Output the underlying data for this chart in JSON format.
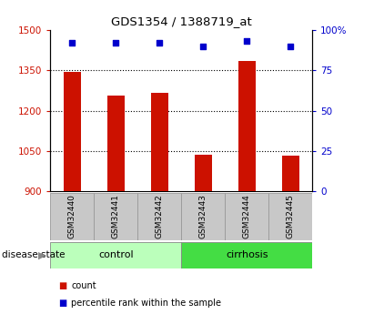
{
  "title": "GDS1354 / 1388719_at",
  "samples": [
    "GSM32440",
    "GSM32441",
    "GSM32442",
    "GSM32443",
    "GSM32444",
    "GSM32445"
  ],
  "counts": [
    1345,
    1255,
    1265,
    1038,
    1385,
    1032
  ],
  "percentile_ranks": [
    92,
    92,
    92,
    90,
    93,
    90
  ],
  "ylim_left": [
    900,
    1500
  ],
  "ylim_right": [
    0,
    100
  ],
  "yticks_left": [
    900,
    1050,
    1200,
    1350,
    1500
  ],
  "yticks_right": [
    0,
    25,
    50,
    75,
    100
  ],
  "ytick_labels_left": [
    "900",
    "1050",
    "1200",
    "1350",
    "1500"
  ],
  "ytick_labels_right": [
    "0",
    "25",
    "50",
    "75",
    "100%"
  ],
  "bar_color": "#cc1100",
  "scatter_color": "#0000cc",
  "bar_width": 0.4,
  "groups": [
    {
      "label": "control",
      "indices": [
        0,
        1,
        2
      ],
      "color": "#bbffbb"
    },
    {
      "label": "cirrhosis",
      "indices": [
        3,
        4,
        5
      ],
      "color": "#44dd44"
    }
  ],
  "disease_state_label": "disease state",
  "legend_count_label": "count",
  "legend_percentile_label": "percentile rank within the sample",
  "left_tick_color": "#cc1100",
  "right_tick_color": "#0000cc",
  "grid_color": "#000000",
  "background_color": "#ffffff",
  "xticklabel_bgcolor": "#c8c8c8"
}
